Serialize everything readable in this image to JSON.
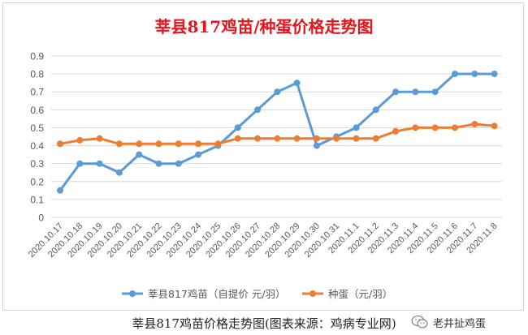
{
  "chart_data": {
    "type": "line",
    "title": "莘县817鸡苗/种蛋价格走势图",
    "categories": [
      "2020.10.17",
      "2020.10.18",
      "2020.10.19",
      "2020.10.20",
      "2020.10.21",
      "2020.10.22",
      "2020.10.23",
      "2020.10.24",
      "2020.10.25",
      "2020.10.26",
      "2020.10.27",
      "2020.10.28",
      "2020.10.29",
      "2020.10.30",
      "2020.10.31",
      "2020.11.1",
      "2020.11.2",
      "2020.11.3",
      "2020.11.4",
      "2020.11.5",
      "2020.11.6",
      "2020.11.7",
      "2020.11.8"
    ],
    "series": [
      {
        "name": "莘县817鸡苗（自提价 元/羽）",
        "color": "#5b9bd5",
        "values": [
          0.15,
          0.3,
          0.3,
          0.25,
          0.35,
          0.3,
          0.3,
          0.35,
          0.4,
          0.5,
          0.6,
          0.7,
          0.75,
          0.4,
          0.45,
          0.5,
          0.6,
          0.7,
          0.7,
          0.7,
          0.8,
          0.8,
          0.8
        ]
      },
      {
        "name": "种蛋（元/羽）",
        "color": "#ed7d31",
        "values": [
          0.41,
          0.43,
          0.44,
          0.41,
          0.41,
          0.41,
          0.41,
          0.41,
          0.41,
          0.44,
          0.44,
          0.44,
          0.44,
          0.44,
          0.44,
          0.44,
          0.44,
          0.48,
          0.5,
          0.5,
          0.5,
          0.52,
          0.51
        ]
      }
    ],
    "y_ticks": [
      "0",
      "0.1",
      "0.2",
      "0.3",
      "0.4",
      "0.5",
      "0.6",
      "0.7",
      "0.8",
      "0.9"
    ],
    "ylim": [
      0,
      0.9
    ],
    "grid": true,
    "legend_position": "bottom",
    "title_color": "#e8141c",
    "axis_color": "#d9d9d9"
  },
  "caption": "莘县817鸡苗价格走势图(图表来源：鸡病专业网)",
  "watermark": {
    "icon": "wechat-icon",
    "text": "老井扯鸡蛋"
  }
}
